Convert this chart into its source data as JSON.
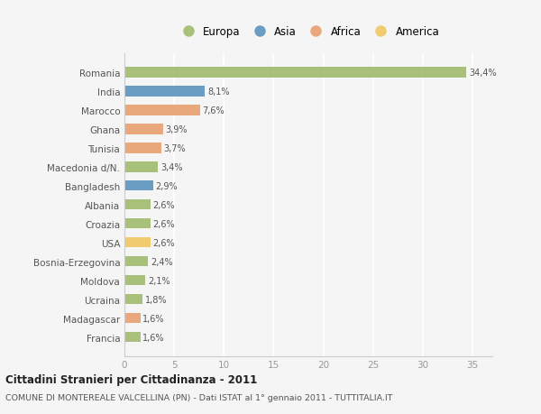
{
  "countries": [
    "Romania",
    "India",
    "Marocco",
    "Ghana",
    "Tunisia",
    "Macedonia d/N.",
    "Bangladesh",
    "Albania",
    "Croazia",
    "USA",
    "Bosnia-Erzegovina",
    "Moldova",
    "Ucraina",
    "Madagascar",
    "Francia"
  ],
  "values": [
    34.4,
    8.1,
    7.6,
    3.9,
    3.7,
    3.4,
    2.9,
    2.6,
    2.6,
    2.6,
    2.4,
    2.1,
    1.8,
    1.6,
    1.6
  ],
  "labels": [
    "34,4%",
    "8,1%",
    "7,6%",
    "3,9%",
    "3,7%",
    "3,4%",
    "2,9%",
    "2,6%",
    "2,6%",
    "2,6%",
    "2,4%",
    "2,1%",
    "1,8%",
    "1,6%",
    "1,6%"
  ],
  "continents": [
    "Europa",
    "Asia",
    "Africa",
    "Africa",
    "Africa",
    "Europa",
    "Asia",
    "Europa",
    "Europa",
    "America",
    "Europa",
    "Europa",
    "Europa",
    "Africa",
    "Europa"
  ],
  "continent_colors": {
    "Europa": "#a8c07a",
    "Asia": "#6b9dc2",
    "Africa": "#e8a87c",
    "America": "#f0cc6e"
  },
  "legend_order": [
    "Europa",
    "Asia",
    "Africa",
    "America"
  ],
  "title": "Cittadini Stranieri per Cittadinanza - 2011",
  "subtitle": "COMUNE DI MONTEREALE VALCELLINA (PN) - Dati ISTAT al 1° gennaio 2011 - TUTTITALIA.IT",
  "xlim": [
    0,
    37
  ],
  "xticks": [
    0,
    5,
    10,
    15,
    20,
    25,
    30,
    35
  ],
  "background_color": "#f5f5f5",
  "grid_color": "#ffffff",
  "bar_height": 0.55
}
